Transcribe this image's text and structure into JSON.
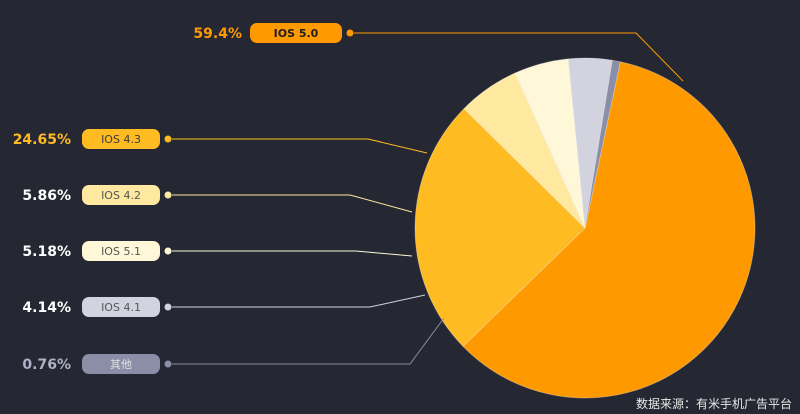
{
  "chart_data": {
    "type": "pie",
    "title": "",
    "legend_placement": "left",
    "slices": [
      {
        "label": "IOS 5.0",
        "value": 59.4,
        "value_label": "59.4%",
        "color": "#FF9900",
        "pill_color": "#FF9900",
        "pill_text_color": "#1e1e1e",
        "value_color": "#FF9900"
      },
      {
        "label": "IOS 4.3",
        "value": 24.65,
        "value_label": "24.65%",
        "color": "#FFBB22",
        "pill_color": "#FFBB22",
        "pill_text_color": "#3a3a3a",
        "value_color": "#FFBB22"
      },
      {
        "label": "IOS 4.2",
        "value": 5.86,
        "value_label": "5.86%",
        "color": "#FFE9A0",
        "pill_color": "#FFE9A0",
        "pill_text_color": "#555555",
        "value_color": "#FFFFFF"
      },
      {
        "label": "IOS 5.1",
        "value": 5.18,
        "value_label": "5.18%",
        "color": "#FFF8D8",
        "pill_color": "#FFF8D8",
        "pill_text_color": "#555555",
        "value_color": "#FFFFFF"
      },
      {
        "label": "IOS 4.1",
        "value": 4.14,
        "value_label": "4.14%",
        "color": "#D2D3DF",
        "pill_color": "#D2D3DF",
        "pill_text_color": "#555555",
        "value_color": "#FFFFFF"
      },
      {
        "label": "其他",
        "value": 0.76,
        "value_label": "0.76%",
        "color": "#8A8EA6",
        "pill_color": "#8A8EA6",
        "pill_text_color": "#e0e0e0",
        "value_color": "#B0B3C5"
      }
    ]
  },
  "footer": {
    "source": "数据来源：有米手机广告平台"
  }
}
